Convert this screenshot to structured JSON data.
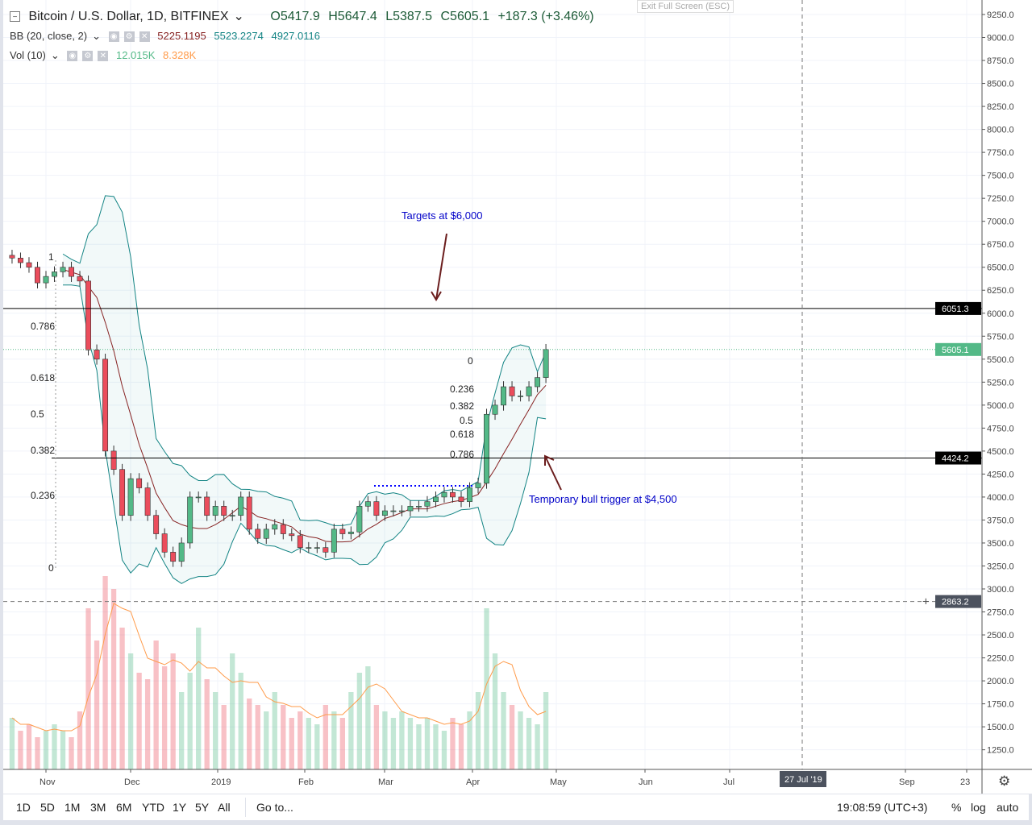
{
  "header": {
    "title": "Bitcoin / U.S. Dollar, 1D, BITFINEX",
    "open": "O5417.9",
    "high": "H5647.4",
    "low": "L5387.5",
    "close": "C5605.1",
    "change": "+187.3 (+3.46%)",
    "exit_fullscreen": "Exit Full Screen (ESC)"
  },
  "bb": {
    "label": "BB (20, close, 2)",
    "basis": "5225.1195",
    "upper": "5523.2274",
    "lower": "4927.0116"
  },
  "vol": {
    "label": "Vol (10)",
    "value": "12.015K",
    "ma": "8.328K"
  },
  "colors": {
    "up": "#53b987",
    "down": "#eb4d5c",
    "basis": "#872323",
    "band": "#138484",
    "vol_ma": "#ff9b4a",
    "annot": "#0000c8"
  },
  "price_axis": {
    "labels": [
      "9250.0",
      "9000.0",
      "8750.0",
      "8500.0",
      "8250.0",
      "8000.0",
      "7750.0",
      "7500.0",
      "7250.0",
      "7000.0",
      "6750.0",
      "6500.0",
      "6250.0",
      "6000.0",
      "5750.0",
      "5500.0",
      "5250.0",
      "5000.0",
      "4750.0",
      "4500.0",
      "4250.0",
      "4000.0",
      "3750.0",
      "3500.0",
      "3250.0",
      "3000.0",
      "2750.0",
      "2500.0",
      "2250.0",
      "2000.0",
      "1750.0",
      "1500.0",
      "1250.0"
    ],
    "last_price": "5605.1",
    "line_target": "6051.3",
    "line_trigger": "4424.2",
    "crosshair": "2863.2"
  },
  "time_axis": {
    "labels": [
      "Nov",
      "Dec",
      "2019",
      "Feb",
      "Mar",
      "Apr",
      "May",
      "Jun",
      "Jul",
      "Sep",
      "23"
    ],
    "crosshair": "27 Jul '19"
  },
  "annotations": {
    "targets": "Targets at $6,000",
    "trigger": "Temporary bull trigger at $4,500"
  },
  "fib_left": [
    "1",
    "0.786",
    "0.618",
    "0.5",
    "0.382",
    "0.236",
    "0"
  ],
  "fib_right": [
    "0",
    "0.236",
    "0.382",
    "0.5",
    "0.618",
    "0.786"
  ],
  "bottom": {
    "ranges": [
      "1D",
      "5D",
      "1M",
      "3M",
      "6M",
      "YTD",
      "1Y",
      "5Y",
      "All"
    ],
    "goto": "Go to...",
    "time": "19:08:59 (UTC+3)",
    "percent": "%",
    "log": "log",
    "auto": "auto"
  },
  "chart_data": {
    "type": "candlestick",
    "title": "Bitcoin / U.S. Dollar, 1D, BITFINEX",
    "start_date": "2018-10-20",
    "step_days": 3,
    "ylim": [
      1100,
      9300
    ],
    "close": [
      6600,
      6550,
      6500,
      6330,
      6400,
      6450,
      6500,
      6400,
      6350,
      5600,
      5500,
      4500,
      4300,
      3800,
      4200,
      4100,
      3800,
      3600,
      3400,
      3300,
      3500,
      4000,
      4000,
      3800,
      3900,
      3800,
      3800,
      4000,
      3650,
      3550,
      3650,
      3700,
      3600,
      3580,
      3450,
      3450,
      3450,
      3400,
      3650,
      3600,
      3620,
      3900,
      3950,
      3800,
      3850,
      3850,
      3850,
      3900,
      3900,
      3950,
      4000,
      4050,
      4000,
      3950,
      4100,
      4150,
      4900,
      5000,
      5200,
      5100,
      5100,
      5200,
      5300,
      5605
    ],
    "volume_k": [
      8,
      6,
      7,
      5,
      6,
      7,
      6,
      5,
      9,
      25,
      20,
      30,
      28,
      22,
      18,
      15,
      14,
      20,
      16,
      18,
      12,
      15,
      22,
      14,
      12,
      10,
      18,
      15,
      11,
      10,
      9,
      12,
      10,
      8,
      9,
      8,
      7,
      10,
      9,
      8,
      12,
      15,
      16,
      10,
      9,
      8,
      9,
      8,
      7,
      8,
      7,
      6,
      8,
      7,
      9,
      12,
      25,
      18,
      12,
      10,
      9,
      8,
      7,
      12
    ]
  }
}
